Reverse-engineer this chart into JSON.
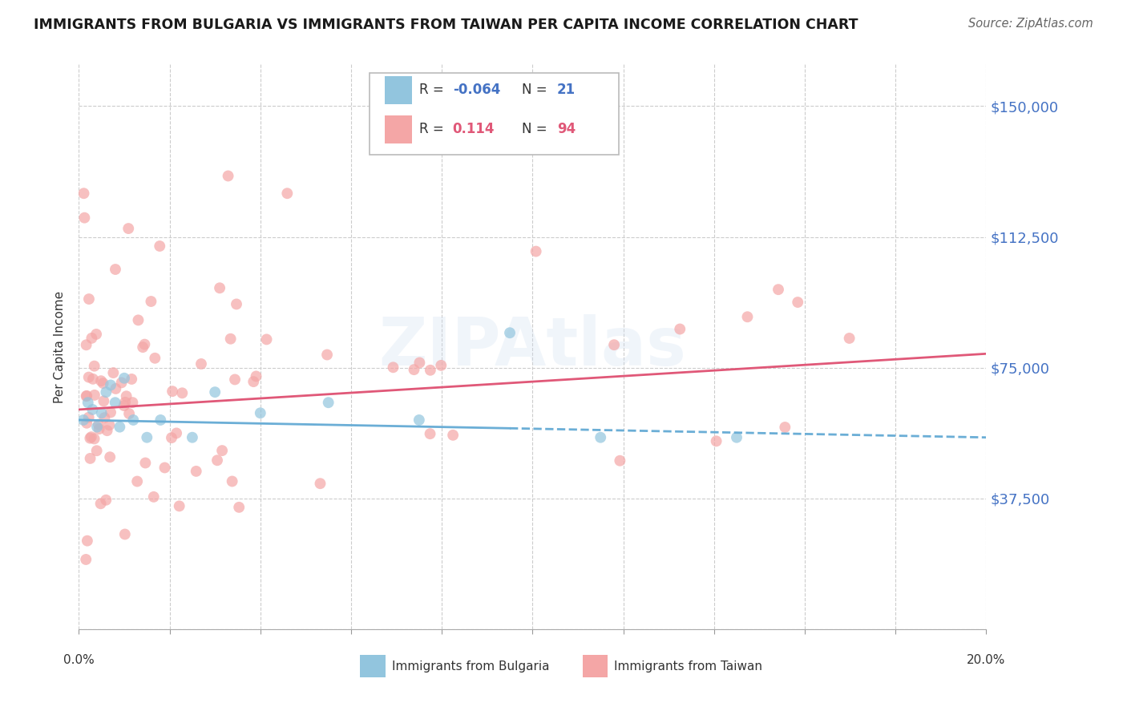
{
  "title": "IMMIGRANTS FROM BULGARIA VS IMMIGRANTS FROM TAIWAN PER CAPITA INCOME CORRELATION CHART",
  "source": "Source: ZipAtlas.com",
  "ylabel": "Per Capita Income",
  "xlim": [
    0.0,
    0.2
  ],
  "ylim": [
    0,
    162000
  ],
  "yticks": [
    0,
    37500,
    75000,
    112500,
    150000
  ],
  "ytick_labels": [
    "",
    "$37,500",
    "$75,000",
    "$112,500",
    "$150,000"
  ],
  "xtick_positions": [
    0.0,
    0.02,
    0.04,
    0.06,
    0.08,
    0.1,
    0.12,
    0.14,
    0.16,
    0.18,
    0.2
  ],
  "watermark": "ZIPAtlas",
  "label1": "Immigrants from Bulgaria",
  "label2": "Immigrants from Taiwan",
  "color_bulgaria": "#92c5de",
  "color_taiwan": "#f4a6a6",
  "color_taiwan_line": "#e05878",
  "color_bulgaria_line": "#6baed6",
  "color_yaxis": "#4472C4",
  "color_r_blue": "#4472C4",
  "color_r_pink": "#e05878",
  "bg_color": "#ffffff",
  "grid_color": "#cccccc",
  "scatter_size": 100,
  "scatter_alpha": 0.7
}
